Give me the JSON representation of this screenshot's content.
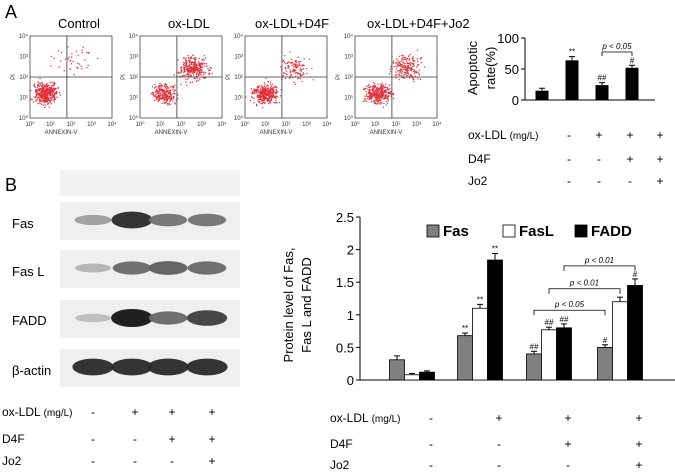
{
  "panel_a": {
    "letter": "A",
    "flow": {
      "titles": [
        "Control",
        "ox-LDL",
        "ox-LDL+D4F",
        "ox-LDL+D4F+Jo2"
      ],
      "y_axis_label": "PI",
      "x_axis_label": "ANNEXIN-V",
      "tick_labels": [
        "10⁰",
        "10¹",
        "10²",
        "10³",
        "10⁴"
      ],
      "scatter_color": "#e0303a",
      "gate_line_color": "#333333"
    },
    "conditions": {
      "labels": [
        "ox-LDL",
        "D4F",
        "Jo2"
      ],
      "unit": "(mg/L)",
      "signs": [
        [
          "-",
          "+",
          "+",
          "+"
        ],
        [
          "-",
          "-",
          "+",
          "+"
        ],
        [
          "-",
          "-",
          "-",
          "+"
        ]
      ]
    }
  },
  "panel_b": {
    "letter": "B",
    "blot": {
      "proteins": [
        "Fas",
        "Fas L",
        "FADD",
        "β-actin"
      ],
      "intensity": [
        [
          0.35,
          0.9,
          0.55,
          0.55
        ],
        [
          0.25,
          0.6,
          0.65,
          0.6
        ],
        [
          0.2,
          1.0,
          0.6,
          0.8
        ],
        [
          0.9,
          0.9,
          0.9,
          0.9
        ]
      ]
    },
    "conditions": {
      "labels": [
        "ox-LDL",
        "D4F",
        "Jo2"
      ],
      "unit": "(mg/L)",
      "signs": [
        [
          "-",
          "+",
          "+",
          "+"
        ],
        [
          "-",
          "-",
          "+",
          "+"
        ],
        [
          "-",
          "-",
          "-",
          "+"
        ]
      ]
    }
  },
  "chart_data": [
    {
      "type": "bar",
      "categories": [
        "Control",
        "ox-LDL",
        "ox-LDL+D4F",
        "ox-LDL+D4F+Jo2"
      ],
      "values": [
        15,
        64,
        24,
        52
      ],
      "errors": [
        4,
        6,
        4,
        4
      ],
      "ylabel": "Apoptotic rate(%)",
      "ylim": [
        0,
        100
      ],
      "yticks": [
        0,
        50,
        100
      ],
      "bar_color": "#000000",
      "significance": [
        "",
        "**",
        "##",
        "#"
      ],
      "bracket": {
        "from": 2,
        "to": 3,
        "label": "p < 0.05"
      }
    },
    {
      "type": "bar",
      "categories": [
        "Control",
        "ox-LDL",
        "ox-LDL+D4F",
        "ox-LDL+D4F+Jo2"
      ],
      "ylabel_lines": [
        "Protein level of Fas,",
        "Fas L and FADD"
      ],
      "ylim": [
        0,
        2.5
      ],
      "yticks": [
        "0",
        "0.5",
        "1",
        "1.5",
        "2",
        "2.5"
      ],
      "series": [
        {
          "name": "Fas",
          "color": "#808080",
          "values": [
            0.31,
            0.68,
            0.4,
            0.5
          ],
          "errors": [
            0.06,
            0.04,
            0.04,
            0.04
          ],
          "marks": [
            "",
            "**",
            "##",
            "#"
          ]
        },
        {
          "name": "FasL",
          "color": "#ffffff",
          "values": [
            0.08,
            1.1,
            0.77,
            1.2
          ],
          "errors": [
            0.02,
            0.06,
            0.04,
            0.07
          ],
          "marks": [
            "",
            "**",
            "##",
            ""
          ]
        },
        {
          "name": "FADD",
          "color": "#000000",
          "values": [
            0.12,
            1.84,
            0.8,
            1.45
          ],
          "errors": [
            0.02,
            0.1,
            0.06,
            0.1
          ],
          "marks": [
            "",
            "**",
            "##",
            "#"
          ]
        }
      ],
      "brackets": [
        {
          "label": "p < 0.01",
          "level": 1.75
        },
        {
          "label": "p < 0.01",
          "level": 1.4
        },
        {
          "label": "p < 0.05",
          "level": 1.07
        }
      ]
    }
  ]
}
